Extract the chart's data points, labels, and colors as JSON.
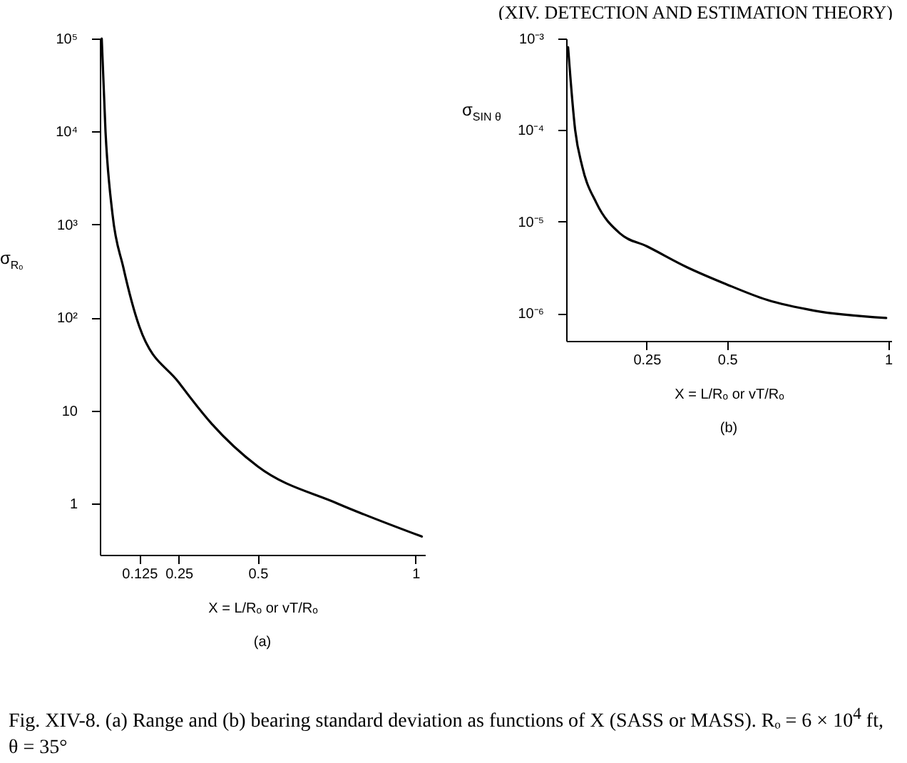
{
  "chart_data": [
    {
      "type": "line",
      "title": "(a)",
      "xlabel": "X = L/Rₒ or vT/Rₒ",
      "ylabel": "σ$_{Rₒ}$",
      "log": "y",
      "grid": false,
      "marker": "none",
      "line_style": "solid",
      "annotations": [
        "Fig. XIV-8.  (a) Range and (b) bearing standard deviation as functions of X (SASS or MASS).  Rₒ = 6 × 10$^{4}$ ft, θ = 35°"
      ],
      "xlim": [
        0,
        1.03
      ],
      "xticks": [
        0.125,
        0.25,
        {
          "value": 0.5,
          "label": "0.5"
        },
        1
      ],
      "ylim": [
        0.28,
        100000
      ],
      "yticks": [
        1,
        10,
        {
          "value": 100,
          "label": "10²"
        },
        {
          "value": 1000,
          "label": "10³"
        },
        {
          "value": 10000,
          "label": "10⁴"
        },
        {
          "value": 100000,
          "label": "10⁵"
        }
      ],
      "series": [
        {
          "color": "#000000",
          "x": [
            0.006,
            0.018,
            0.04,
            0.074,
            0.125,
            0.25,
            0.354,
            0.5,
            0.752,
            1.02
          ],
          "values": [
            100000,
            10000,
            1300,
            350,
            80,
            20,
            7.2,
            2.5,
            1,
            0.44
          ]
        }
      ]
    },
    {
      "type": "line",
      "title": "(b)",
      "xlabel": "X = L/Rₒ or vT/Rₒ",
      "ylabel": "σ$_{SIN θ}$",
      "log": "y",
      "grid": false,
      "marker": "none",
      "line_style": "solid",
      "annotations": [
        "(XIV.  DETECTION AND ESTIMATION THEORY)"
      ],
      "xlim": [
        0,
        1.01
      ],
      "xticks": [
        0.25,
        {
          "value": 0.5,
          "label": "0.5"
        },
        1
      ],
      "ylim": [
        5e-07,
        0.001
      ],
      "yticks": [
        {
          "value": 1e-06,
          "label": "10⁻⁶"
        },
        {
          "value": 1e-05,
          "label": "10⁻⁵"
        },
        {
          "value": 0.0001,
          "label": "10⁻⁴"
        },
        {
          "value": 0.001,
          "label": "10⁻³"
        }
      ],
      "series": [
        {
          "color": "#000000",
          "x": [
            0.006,
            0.028,
            0.05,
            0.094,
            0.168,
            0.25,
            0.374,
            0.494,
            0.624,
            0.77,
            0.994
          ],
          "values": [
            0.0008,
            0.0001,
            4e-05,
            1.6e-05,
            7.4e-06,
            5.4e-06,
            3.2e-06,
            2.1e-06,
            1.4e-06,
            1.07e-06,
            8.9e-07
          ]
        }
      ]
    }
  ]
}
